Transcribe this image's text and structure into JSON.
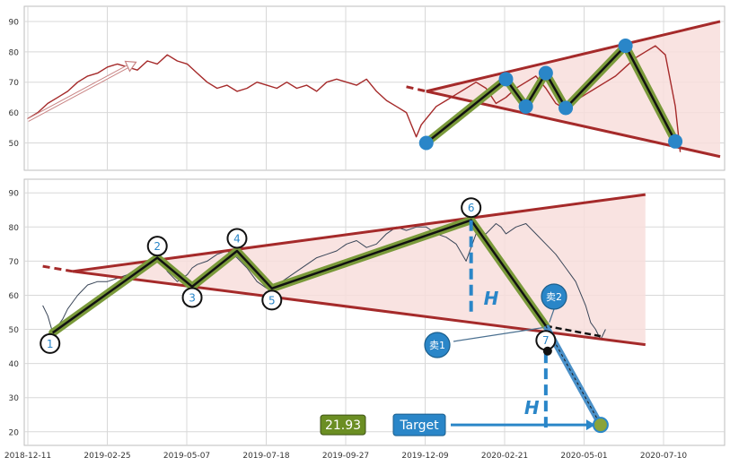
{
  "chart_data": [
    {
      "type": "line",
      "panel": "top",
      "ylim": [
        41,
        95
      ],
      "yticks": [
        "50",
        "60",
        "70",
        "80",
        "90"
      ],
      "grid": true,
      "series": [
        {
          "role": "price",
          "color": "#a52a2a",
          "x": [
            0,
            2,
            4,
            6,
            8,
            10,
            12,
            14,
            16,
            18,
            20,
            22,
            24,
            26,
            28,
            30,
            32,
            34,
            36,
            38,
            40,
            42,
            44,
            46,
            48,
            50,
            52,
            54,
            56,
            58,
            60,
            62,
            64,
            66,
            68,
            70,
            72,
            74,
            76,
            77,
            78,
            79,
            80,
            81,
            82,
            84,
            86,
            88,
            90,
            92,
            94,
            96,
            98,
            100,
            102,
            104,
            106,
            108,
            110,
            112,
            114,
            116,
            118,
            120,
            122,
            124,
            126,
            128,
            130,
            131
          ],
          "y": [
            58,
            60,
            63,
            65,
            67,
            70,
            72,
            73,
            75,
            76,
            75,
            74,
            77,
            76,
            79,
            77,
            76,
            73,
            70,
            68,
            69,
            67,
            68,
            70,
            69,
            68,
            70,
            68,
            69,
            67,
            70,
            71,
            70,
            69,
            71,
            67,
            64,
            62,
            60,
            56,
            52,
            56,
            58,
            60,
            62,
            64,
            66,
            68,
            70,
            68,
            63,
            65,
            68,
            70,
            72,
            68,
            63,
            61,
            64,
            66,
            68,
            70,
            72,
            75,
            78,
            80,
            82,
            79,
            62,
            47
          ]
        }
      ],
      "pattern": {
        "points": [
          {
            "x": 80,
            "y": 50
          },
          {
            "x": 96,
            "y": 71
          },
          {
            "x": 100,
            "y": 62
          },
          {
            "x": 104,
            "y": 73
          },
          {
            "x": 108,
            "y": 61.5
          },
          {
            "x": 120,
            "y": 82
          },
          {
            "x": 130,
            "y": 50.5
          }
        ],
        "upper_line": {
          "x": [
            80,
            139
          ],
          "y": [
            67,
            90
          ]
        },
        "lower_line": {
          "x": [
            80,
            139
          ],
          "y": [
            67,
            45.5
          ]
        }
      }
    },
    {
      "type": "line",
      "panel": "bottom",
      "ylim": [
        16,
        94
      ],
      "yticks": [
        "20",
        "30",
        "40",
        "50",
        "60",
        "70",
        "80",
        "90"
      ],
      "xticks": [
        "2018-12-11",
        "2019-02-25",
        "2019-05-07",
        "2019-07-18",
        "2019-09-27",
        "2019-12-09",
        "2020-02-21",
        "2020-05-01",
        "2020-07-10"
      ],
      "grid": true,
      "series": [
        {
          "role": "price",
          "color": "#3a4658",
          "x": [
            3,
            4,
            5,
            6,
            7,
            8,
            10,
            12,
            14,
            16,
            18,
            20,
            22,
            24,
            26,
            27,
            28,
            30,
            32,
            33,
            34,
            36,
            38,
            40,
            42,
            44,
            46,
            48,
            50,
            52,
            54,
            56,
            58,
            60,
            62,
            64,
            66,
            68,
            70,
            72,
            74,
            76,
            78,
            80,
            82,
            84,
            86,
            88,
            90,
            92,
            94,
            95,
            96,
            98,
            100,
            102,
            104,
            106,
            108,
            110,
            112,
            113,
            114,
            115,
            116
          ],
          "y": [
            57,
            54,
            49,
            51,
            53,
            56,
            60,
            63,
            64,
            64,
            65,
            66,
            68,
            70,
            71,
            70,
            67,
            64,
            66,
            68,
            69,
            70,
            72,
            73,
            71,
            68,
            64,
            62,
            63,
            65,
            67,
            69,
            71,
            72,
            73,
            75,
            76,
            74,
            75,
            78,
            80,
            79,
            80,
            80,
            78,
            77,
            75,
            70,
            78,
            78,
            81,
            80,
            78,
            80,
            81,
            78,
            75,
            72,
            68,
            64,
            57,
            52,
            50,
            47,
            50
          ]
        }
      ],
      "pattern": {
        "points": [
          {
            "x": 5,
            "y": 49
          },
          {
            "x": 26,
            "y": 71
          },
          {
            "x": 33,
            "y": 62.5
          },
          {
            "x": 42,
            "y": 73
          },
          {
            "x": 49,
            "y": 62
          },
          {
            "x": 89,
            "y": 82
          },
          {
            "x": 104,
            "y": 51
          }
        ],
        "upper_line": {
          "x": [
            9,
            124
          ],
          "y": [
            67,
            89.5
          ]
        },
        "lower_line": {
          "x": [
            9,
            124
          ],
          "y": [
            67,
            45.5
          ]
        }
      },
      "extension_line": {
        "x": [
          104,
          115
        ],
        "y": [
          51,
          48
        ]
      },
      "measure_H_upper": {
        "x": 89,
        "y": [
          82,
          54
        ]
      },
      "measure_H_lower": {
        "x": 104,
        "y": [
          48,
          21
        ]
      },
      "target_arrow": {
        "x": [
          104,
          115
        ],
        "y": [
          51,
          22
        ]
      },
      "target_point": {
        "x": 115,
        "y": 22
      },
      "sell_points": [
        {
          "x": 104,
          "y": 51
        },
        {
          "x": 104,
          "y": 51
        }
      ]
    }
  ],
  "labels": {
    "wave_numbers": [
      "1",
      "2",
      "3",
      "4",
      "5",
      "6",
      "7"
    ],
    "h_label": "H",
    "sell1": "卖1",
    "sell2": "卖2",
    "target": "Target",
    "target_value": "21.93"
  },
  "colors": {
    "price_top": "#a52a2a",
    "price_bottom": "#3a4658",
    "channel_line": "#a52a2a",
    "channel_fill": "#f8dedc",
    "zigzag_outer": "#7a9a3a",
    "zigzag_inner": "#111111",
    "accent_blue": "#2a86c8",
    "target_green": "#6b8e23",
    "grid": "#d8d8d8"
  }
}
